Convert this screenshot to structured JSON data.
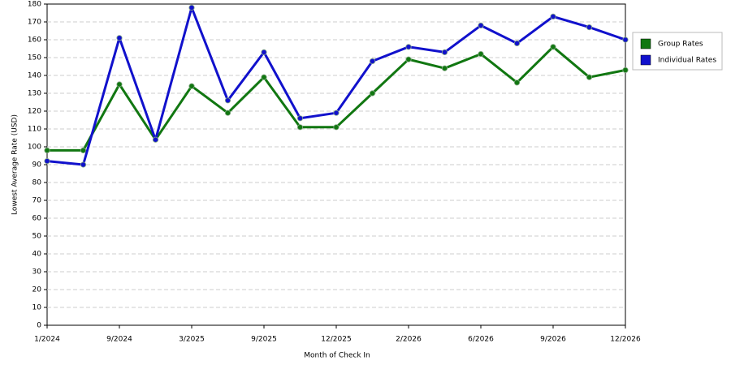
{
  "chart_data": {
    "type": "line",
    "x_label": "Month of Check In",
    "y_label": "Lowest Average Rate (USD)",
    "categories": [
      "1/2024",
      null,
      "9/2024",
      null,
      "3/2025",
      null,
      "9/2025",
      null,
      "12/2025",
      null,
      "2/2026",
      null,
      "6/2026",
      null,
      "9/2026",
      null,
      "12/2026"
    ],
    "series": [
      {
        "name": "Group Rates",
        "color": "#117711",
        "values": [
          98,
          98,
          135,
          104,
          134,
          119,
          139,
          111,
          111,
          130,
          149,
          144,
          152,
          136,
          156,
          139,
          143
        ]
      },
      {
        "name": "Individual Rates",
        "color": "#1111cc",
        "values": [
          92,
          90,
          161,
          104,
          178,
          126,
          153,
          116,
          119,
          148,
          156,
          153,
          168,
          158,
          173,
          167,
          160
        ]
      }
    ],
    "ylim": [
      0,
      180
    ],
    "yticks": [
      0,
      10,
      20,
      30,
      40,
      50,
      60,
      70,
      80,
      90,
      100,
      110,
      120,
      130,
      140,
      150,
      160,
      170,
      180
    ],
    "grid": true,
    "legend": "right"
  }
}
